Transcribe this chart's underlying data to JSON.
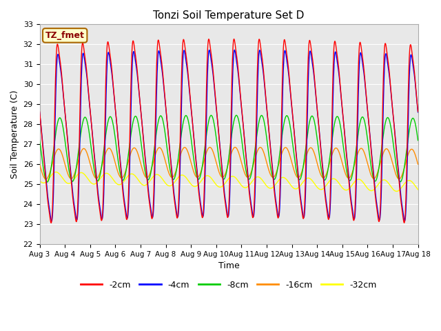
{
  "title": "Tonzi Soil Temperature Set D",
  "xlabel": "Time",
  "ylabel": "Soil Temperature (C)",
  "ylim": [
    22.0,
    33.0
  ],
  "yticks": [
    22.0,
    23.0,
    24.0,
    25.0,
    26.0,
    27.0,
    28.0,
    29.0,
    30.0,
    31.0,
    32.0,
    33.0
  ],
  "xtick_labels": [
    "Aug 3",
    "Aug 4",
    "Aug 5",
    "Aug 6",
    "Aug 7",
    "Aug 8",
    "Aug 9",
    "Aug 10",
    "Aug 11",
    "Aug 12",
    "Aug 13",
    "Aug 14",
    "Aug 15",
    "Aug 16",
    "Aug 17",
    "Aug 18"
  ],
  "colors": {
    "-2cm": "#FF0000",
    "-4cm": "#0000FF",
    "-8cm": "#00CC00",
    "-16cm": "#FF8C00",
    "-32cm": "#FFFF00"
  },
  "label_box_text": "TZ_fmet",
  "label_box_bg": "#FFFFCC",
  "label_box_edge": "#AA6600",
  "background_color": "#E8E8E8",
  "n_points": 1440
}
